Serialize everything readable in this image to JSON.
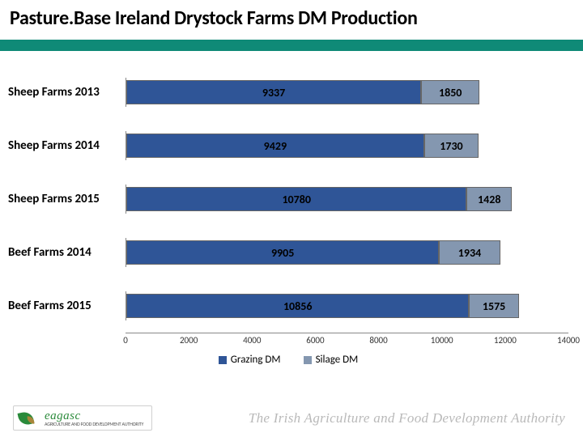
{
  "title": "Pasture.Base Ireland Drystock Farms DM Production",
  "chart": {
    "type": "stacked-horizontal-bar",
    "x_max": 14000,
    "x_ticks": [
      0,
      2000,
      4000,
      6000,
      8000,
      10000,
      12000,
      14000
    ],
    "series": [
      {
        "name": "Grazing DM",
        "color": "#2f5597"
      },
      {
        "name": "Silage DM",
        "color": "#8497b0"
      }
    ],
    "categories": [
      {
        "label": "Sheep Farms 2013",
        "values": [
          9337,
          1850
        ]
      },
      {
        "label": "Sheep Farms 2014",
        "values": [
          9429,
          1730
        ]
      },
      {
        "label": "Sheep Farms 2015",
        "values": [
          10780,
          1428
        ]
      },
      {
        "label": "Beef Farms 2014",
        "values": [
          9905,
          1934
        ]
      },
      {
        "label": "Beef Farms 2015",
        "values": [
          10856,
          1575
        ]
      }
    ],
    "grid_color": "#888888",
    "label_fontsize": 15,
    "value_fontsize": 14,
    "tick_fontsize": 11
  },
  "footer": {
    "logo_name": "eagasc",
    "logo_subtitle": "AGRICULTURE AND FOOD DEVELOPMENT AUTHORITY",
    "authority_text": "The Irish Agriculture and Food Development Authority"
  },
  "colors": {
    "teal_stripe": "#0f8a77",
    "background": "#ffffff",
    "footer_text": "#b9b9b9"
  }
}
